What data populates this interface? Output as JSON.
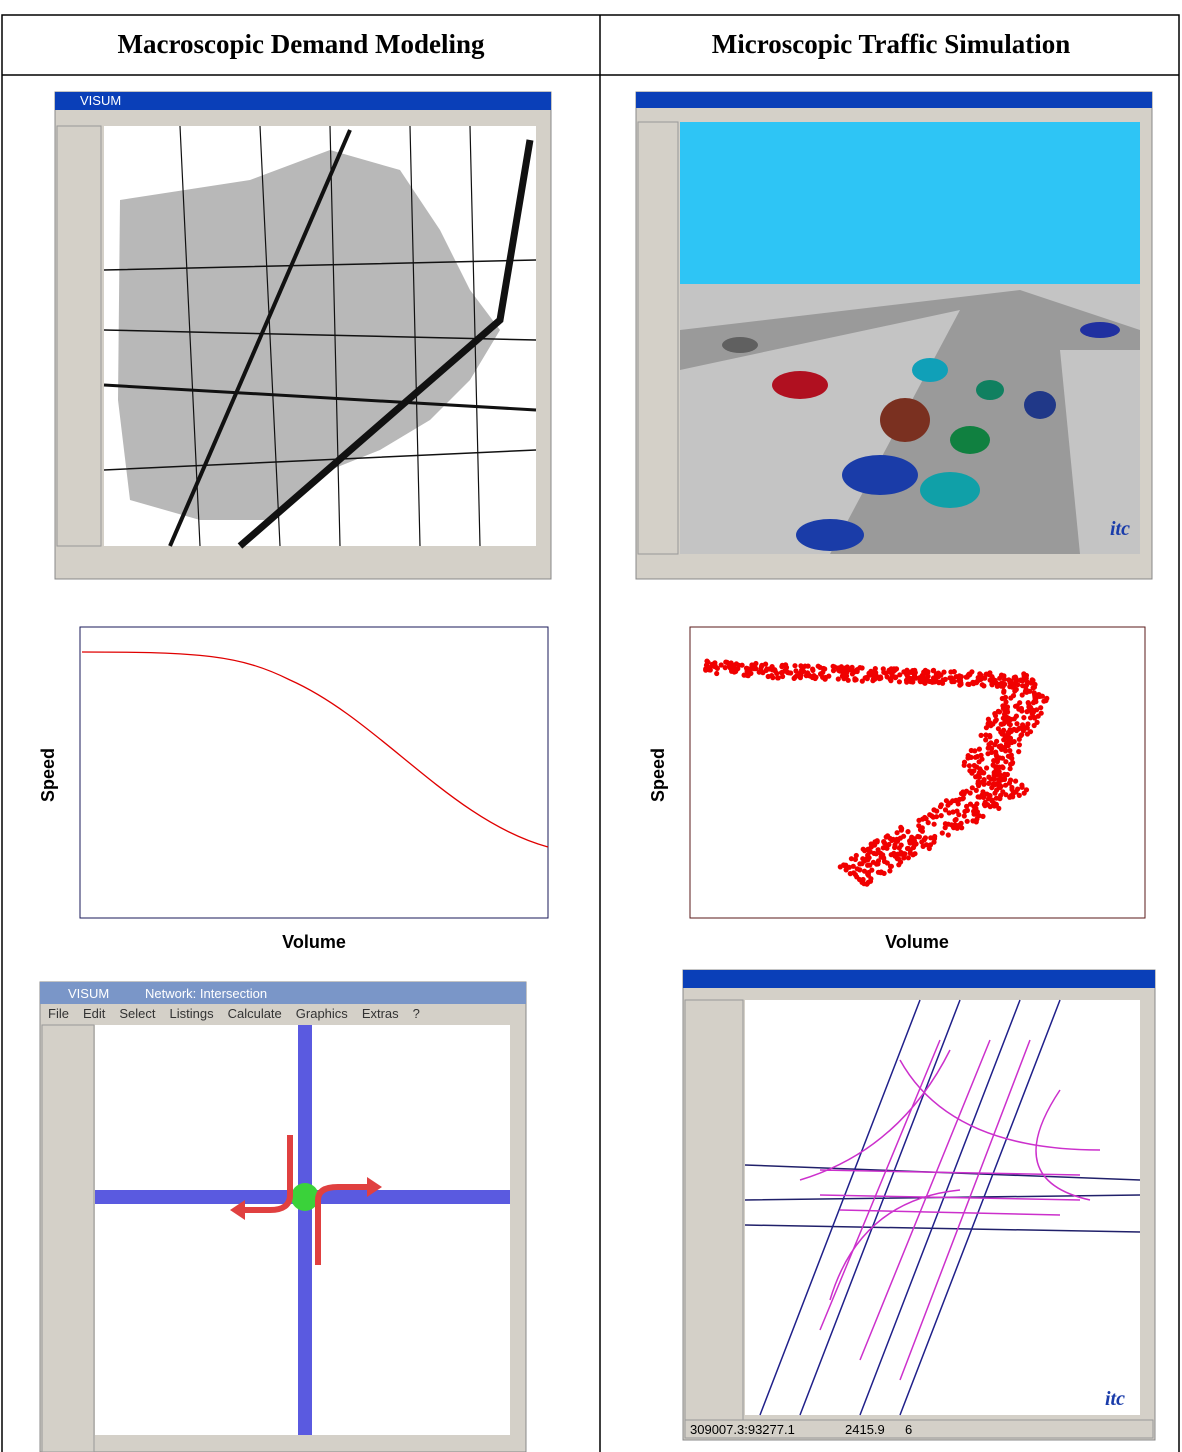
{
  "table": {
    "headers": [
      "Macroscopic Demand Modeling",
      "Microscopic Traffic Simulation"
    ]
  },
  "charts": [
    {
      "y_label": "Speed",
      "x_label": "Volume"
    },
    {
      "y_label": "Speed",
      "x_label": "Volume"
    }
  ],
  "screens": {
    "map": {
      "app": "VISUM"
    },
    "intersection": {
      "app": "VISUM",
      "window": "Network: Intersection",
      "menu": [
        "File",
        "Edit",
        "Select",
        "Listings",
        "Calculate",
        "Graphics",
        "Extras",
        "?"
      ]
    },
    "sim_logo": "itc",
    "vissim": {
      "status": [
        "309007.3:93277.1",
        "2415.9",
        "6"
      ],
      "logo": "itc"
    }
  }
}
